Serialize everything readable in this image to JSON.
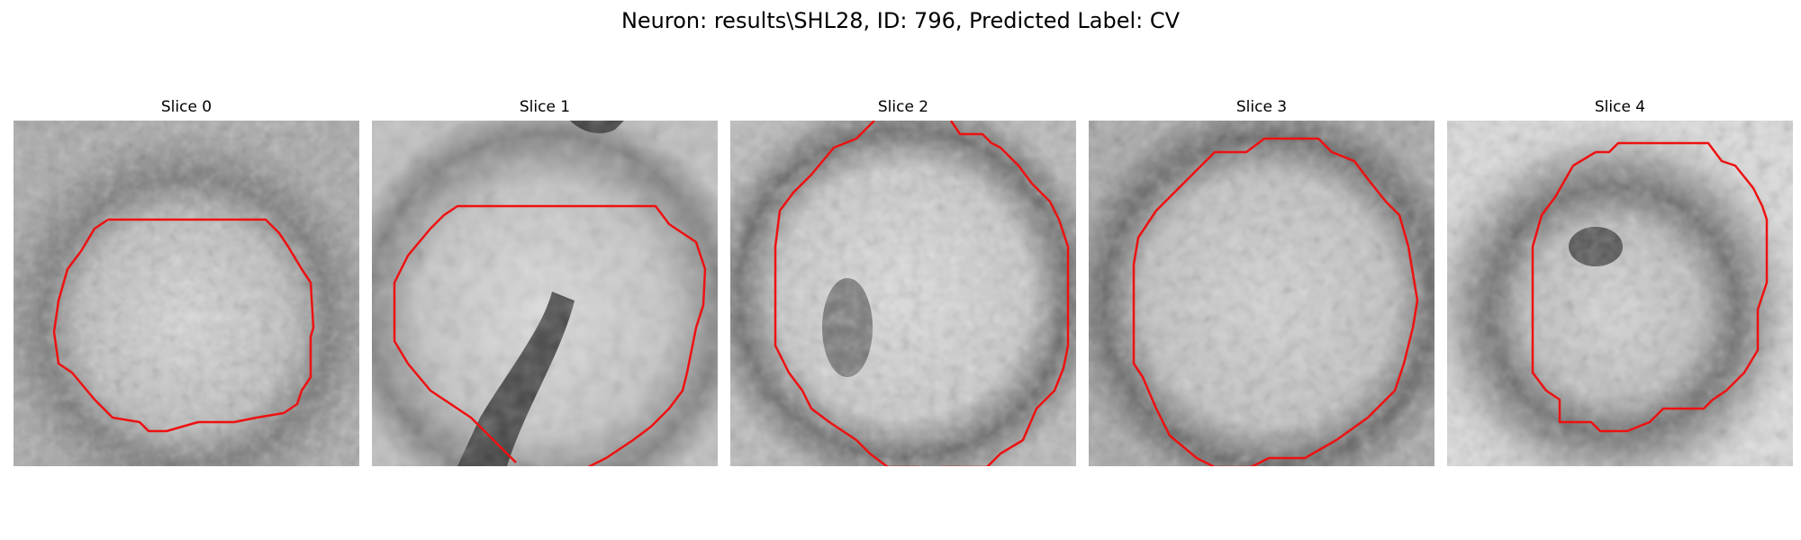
{
  "figure": {
    "title": "Neuron: results\\SHL28, ID: 796, Predicted Label: CV"
  },
  "colors": {
    "contour": "#ee1111",
    "background": "#ffffff"
  },
  "panels": [
    {
      "title": "Slice 0"
    },
    {
      "title": "Slice 1"
    },
    {
      "title": "Slice 2"
    },
    {
      "title": "Slice 3"
    },
    {
      "title": "Slice 4"
    }
  ]
}
